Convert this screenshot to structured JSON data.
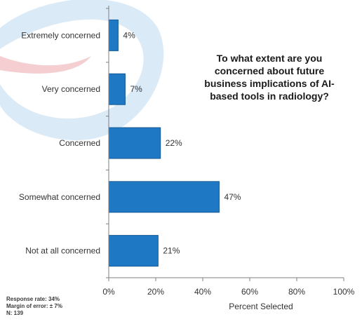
{
  "question": "To what extent are you concerned about future business implications of AI-based tools in radiology?",
  "footnote": {
    "response_rate": "Response rate: 34%",
    "margin_of_error": "Margin of error: ± 7%",
    "n": "N: 139"
  },
  "colors": {
    "bar": "#1f78c4",
    "bar_edge": "#155a96",
    "logo_ring": "#cfe3f4",
    "logo_swoosh": "#f2c6c8",
    "axis": "#7f7f7f",
    "text": "#333333"
  },
  "chart_data": {
    "type": "bar",
    "orientation": "horizontal",
    "categories": [
      "Extremely concerned",
      "Very concerned",
      "Concerned",
      "Somewhat concerned",
      "Not at all concerned"
    ],
    "values": [
      4,
      7,
      22,
      47,
      21
    ],
    "value_labels": [
      "4%",
      "7%",
      "22%",
      "47%",
      "21%"
    ],
    "xlabel": "Percent Selected",
    "ylabel": "",
    "xlim": [
      0,
      100
    ],
    "xticks": [
      0,
      20,
      40,
      60,
      80,
      100
    ],
    "xtick_labels": [
      "0%",
      "20%",
      "40%",
      "60%",
      "80%",
      "100%"
    ],
    "grid": false
  }
}
